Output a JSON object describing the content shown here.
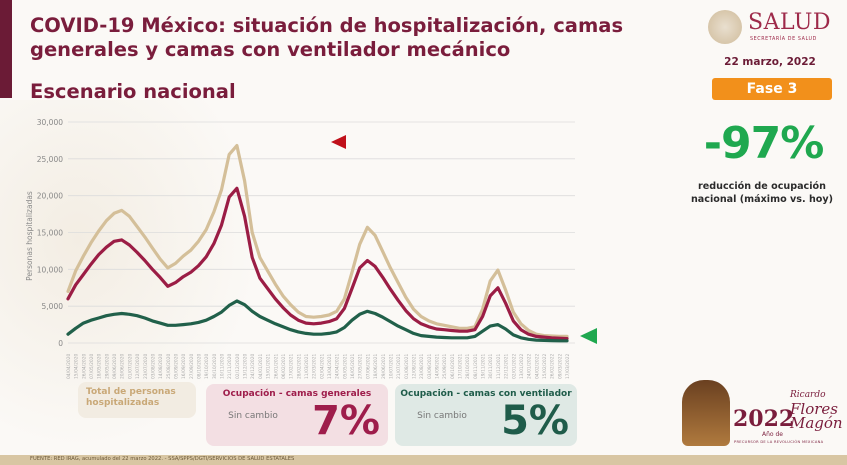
{
  "header": {
    "title": "COVID-19 México: situación de hospitalización, camas generales y camas con ventilador mecánico",
    "subtitle": "Escenario nacional",
    "logo_word": "SALUD",
    "logo_sub": "SECRETARÍA DE SALUD",
    "date": "22 marzo, 2022",
    "phase": "Fase 3"
  },
  "highlight": {
    "value": "-97%",
    "caption": "reducción de ocupación nacional (máximo vs. hoy)"
  },
  "cards": {
    "total_label": "Total de personas hospitalizadas",
    "general": {
      "title": "Ocupación - camas generales",
      "status": "Sin cambio",
      "value": "7%"
    },
    "ventilator": {
      "title": "Ocupación - camas con ventilador",
      "status": "Sin cambio",
      "value": "5%"
    }
  },
  "footer": {
    "source": "FUENTE: RED IRAG, acumulado del 22 marzo 2022. - SSA/SPPS/DGTI/SERVICIOS DE SALUD ESTATALES"
  },
  "branding": {
    "year": "2022",
    "ano_de": "Año de",
    "name_1": "Ricardo",
    "name_2": "Flores",
    "name_3": "Magón",
    "tagline": "PRECURSOR DE LA REVOLUCIÓN MEXICANA"
  },
  "colors": {
    "total": "#d4bf99",
    "general": "#9b1d45",
    "ventilator": "#21604a",
    "marker_red": "#c0101a",
    "marker_green": "#1fa84f"
  },
  "chart_data": {
    "type": "line",
    "title": "",
    "xlabel": "",
    "ylabel": "Personas hospitalizadas",
    "ylim": [
      0,
      30000
    ],
    "yticks": [
      0,
      5000,
      10000,
      15000,
      20000,
      25000,
      30000
    ],
    "ytick_labels": [
      "0",
      "5,000",
      "10,000",
      "15,000",
      "20,000",
      "25,000",
      "30,000"
    ],
    "grid": true,
    "x_start": "04/04/2020",
    "x_end": "17/03/2022",
    "x": [
      "04/04/2020",
      "15/04/2020",
      "26/04/2020",
      "07/05/2020",
      "18/05/2020",
      "29/05/2020",
      "09/06/2020",
      "20/06/2020",
      "01/07/2020",
      "12/07/2020",
      "23/07/2020",
      "03/08/2020",
      "14/08/2020",
      "25/08/2020",
      "05/09/2020",
      "16/09/2020",
      "27/09/2020",
      "08/10/2020",
      "19/10/2020",
      "30/10/2020",
      "10/11/2020",
      "21/11/2020",
      "02/12/2020",
      "13/12/2020",
      "24/12/2020",
      "04/01/2021",
      "15/01/2021",
      "26/01/2021",
      "06/02/2021",
      "17/02/2021",
      "28/02/2021",
      "11/03/2021",
      "22/03/2021",
      "02/04/2021",
      "13/04/2021",
      "24/04/2021",
      "05/05/2021",
      "16/05/2021",
      "27/05/2021",
      "07/06/2021",
      "18/06/2021",
      "29/06/2021",
      "10/07/2021",
      "21/07/2021",
      "01/08/2021",
      "12/08/2021",
      "23/08/2021",
      "03/09/2021",
      "14/09/2021",
      "25/09/2021",
      "06/10/2021",
      "17/10/2021",
      "28/10/2021",
      "08/11/2021",
      "19/11/2021",
      "30/11/2021",
      "11/12/2021",
      "22/12/2021",
      "02/01/2022",
      "13/01/2022",
      "24/01/2022",
      "04/02/2022",
      "15/02/2022",
      "26/02/2022",
      "09/03/2022",
      "17/03/2022"
    ],
    "series": [
      {
        "name": "Total de personas hospitalizadas",
        "values": [
          7000,
          9800,
          11800,
          13600,
          15200,
          16600,
          17600,
          18000,
          17200,
          15800,
          14400,
          12900,
          11400,
          10200,
          10800,
          11800,
          12600,
          13800,
          15400,
          17800,
          20800,
          25600,
          26800,
          22000,
          15000,
          11600,
          9800,
          8000,
          6400,
          5200,
          4200,
          3600,
          3500,
          3600,
          3800,
          4300,
          6000,
          9600,
          13400,
          15700,
          14600,
          12400,
          10200,
          8200,
          6200,
          4600,
          3600,
          3000,
          2600,
          2400,
          2200,
          2000,
          2000,
          2200,
          4600,
          8400,
          9900,
          7200,
          4200,
          2600,
          1700,
          1200,
          1000,
          950,
          900,
          900
        ]
      },
      {
        "name": "Ocupación - camas generales",
        "values": [
          6000,
          7900,
          9300,
          10700,
          12000,
          13000,
          13800,
          14000,
          13300,
          12300,
          11200,
          10000,
          8900,
          7700,
          8200,
          9000,
          9600,
          10500,
          11700,
          13500,
          16000,
          19800,
          21000,
          17200,
          11600,
          8800,
          7400,
          6000,
          4800,
          3800,
          3100,
          2700,
          2600,
          2700,
          2900,
          3300,
          4700,
          7400,
          10200,
          11200,
          10400,
          8900,
          7300,
          5800,
          4400,
          3300,
          2600,
          2200,
          1900,
          1800,
          1700,
          1600,
          1600,
          1800,
          3600,
          6400,
          7500,
          5400,
          3000,
          1800,
          1200,
          900,
          800,
          700,
          650,
          600
        ]
      },
      {
        "name": "Ocupación - camas con ventilador",
        "values": [
          1200,
          2000,
          2700,
          3100,
          3400,
          3700,
          3900,
          4000,
          3900,
          3700,
          3400,
          3000,
          2700,
          2400,
          2400,
          2500,
          2600,
          2800,
          3100,
          3600,
          4200,
          5100,
          5700,
          5200,
          4300,
          3600,
          3100,
          2600,
          2200,
          1800,
          1500,
          1300,
          1200,
          1200,
          1300,
          1500,
          2100,
          3100,
          3900,
          4300,
          4000,
          3500,
          2900,
          2300,
          1800,
          1300,
          1000,
          900,
          800,
          750,
          700,
          700,
          700,
          900,
          1600,
          2300,
          2500,
          1900,
          1100,
          700,
          500,
          400,
          350,
          320,
          300,
          300
        ]
      }
    ],
    "legend": "bottom",
    "annotations": [
      "red-marker-left",
      "green-marker-right"
    ]
  }
}
